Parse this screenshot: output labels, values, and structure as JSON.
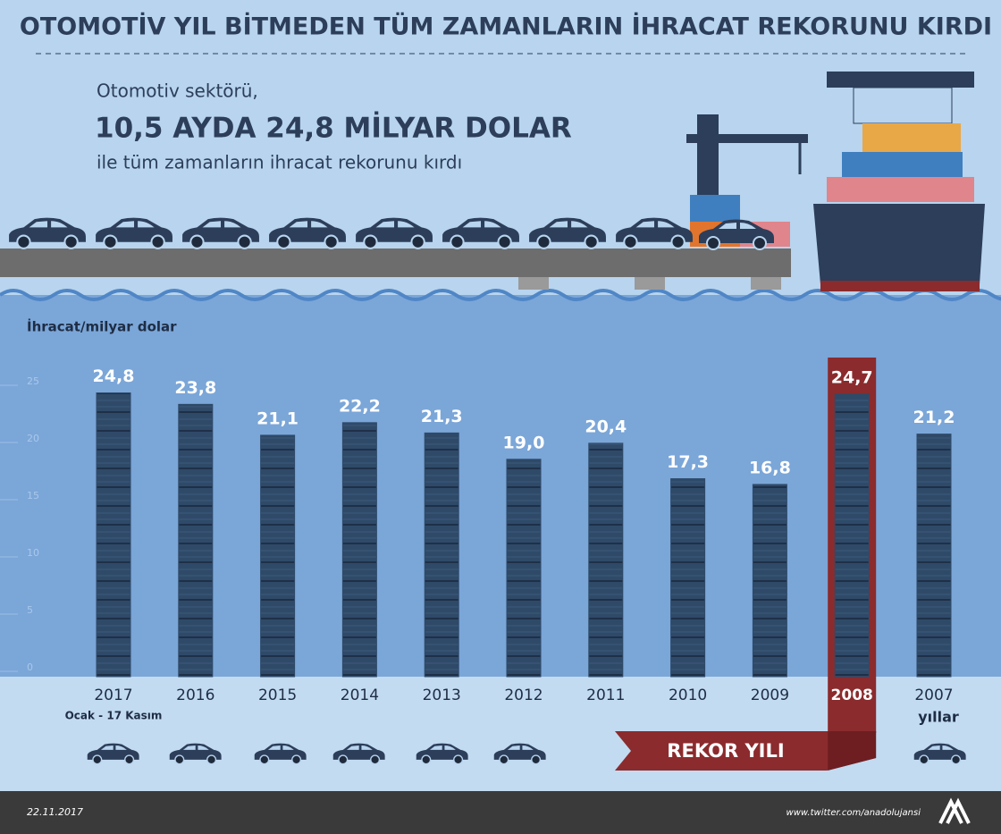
{
  "chart_data": {
    "type": "bar",
    "title": "OTOMOTİV YIL BİTMEDEN TÜM ZAMANLARIN İHRACAT REKORUNU KIRDI",
    "subtitle": [
      "Otomotiv sektörü,",
      "10,5 AYDA 24,8 MİLYAR DOLAR",
      "ile tüm zamanların ihracat rekorunu kırdı"
    ],
    "ylabel": "İhracat/milyar dolar",
    "xlabel": "yıllar",
    "categories": [
      "2017",
      "2016",
      "2015",
      "2014",
      "2013",
      "2012",
      "2011",
      "2010",
      "2009",
      "2008",
      "2007"
    ],
    "category_note": "Ocak - 17 Kasım",
    "values": [
      24.8,
      23.8,
      21.1,
      22.2,
      21.3,
      19.0,
      20.4,
      17.3,
      16.8,
      24.7,
      21.2
    ],
    "value_labels": [
      "24,8",
      "23,8",
      "21,1",
      "22,2",
      "21,3",
      "19,0",
      "20,4",
      "17,3",
      "16,8",
      "24,7",
      "21,2"
    ],
    "color": "#2f4a69",
    "ylim": [
      0,
      25
    ],
    "yticks": [
      0,
      5,
      10,
      15,
      20,
      25
    ],
    "highlight": {
      "category": "2008",
      "label": "REKOR YILI",
      "color": "#8b2b2d"
    },
    "footer": {
      "date": "22.11.2017",
      "source": "www.twitter.com/anadolujansi"
    }
  }
}
